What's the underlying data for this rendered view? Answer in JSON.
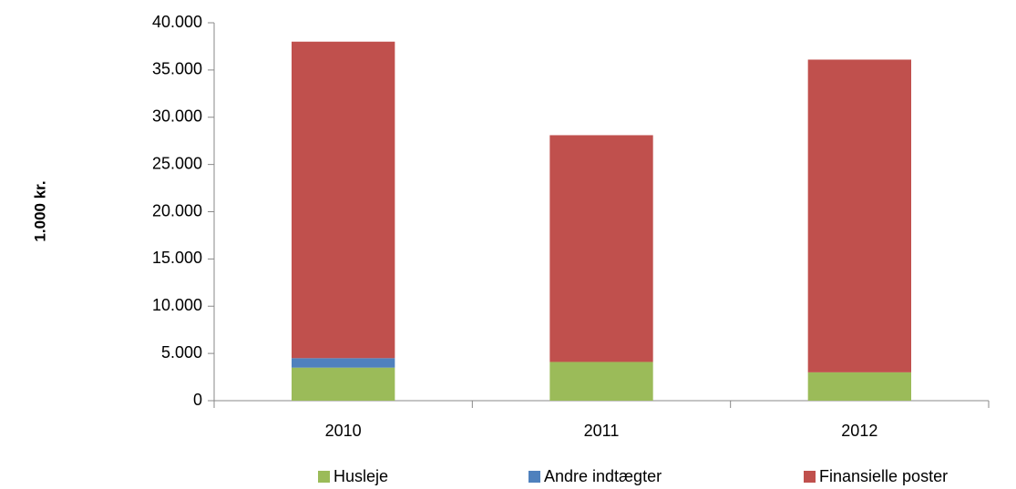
{
  "chart_data": {
    "type": "stacked_bar",
    "y_axis_label": "1.000 kr.",
    "categories": [
      "2010",
      "2011",
      "2012"
    ],
    "series": [
      {
        "name": "Husleje",
        "color": "#9bbb59",
        "values": [
          3500,
          4100,
          3000
        ]
      },
      {
        "name": "Andre indtægter",
        "color": "#4f81bd",
        "values": [
          1000,
          0,
          0
        ]
      },
      {
        "name": "Finansielle poster",
        "color": "#c0504d",
        "values": [
          33500,
          24000,
          33100
        ]
      }
    ],
    "ylim": [
      0,
      40000
    ],
    "yticks": [
      0,
      {
        "value": 5000,
        "label": "5.000"
      },
      {
        "value": 10000,
        "label": "10.000"
      },
      {
        "value": 15000,
        "label": "15.000"
      },
      {
        "value": 20000,
        "label": "20.000"
      },
      {
        "value": 25000,
        "label": "25.000"
      },
      {
        "value": 30000,
        "label": "30.000"
      },
      {
        "value": 35000,
        "label": "35.000"
      },
      {
        "value": 40000,
        "label": "40.000"
      }
    ],
    "grid": false,
    "legend": "bottom"
  }
}
